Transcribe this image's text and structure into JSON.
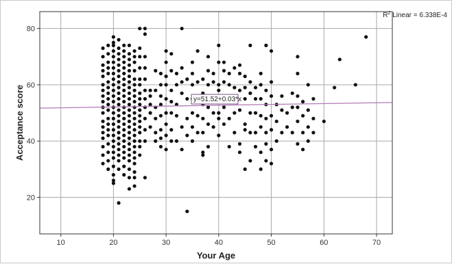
{
  "chart_data": {
    "type": "scatter",
    "title": "",
    "xlabel": "Your Age",
    "ylabel": "Acceptance score",
    "xlim": [
      6,
      73
    ],
    "ylim": [
      7,
      86
    ],
    "xticks": [
      10,
      20,
      30,
      40,
      50,
      60,
      70
    ],
    "yticks": [
      20,
      40,
      60,
      80
    ],
    "grid": true,
    "legend_position": "top-right",
    "r2_label": {
      "prefix": "R",
      "sup": "2",
      "text": " Linear = 6.338E-4"
    },
    "fit_equation": "y=51.52+0.03*x",
    "fit": {
      "intercept": 51.52,
      "slope": 0.03
    },
    "colors": {
      "points": "#111111",
      "fit_line": "#b07ab5",
      "grid": "#a8a8a8",
      "axis": "#333333"
    },
    "points": [
      [
        18,
        32
      ],
      [
        18,
        35
      ],
      [
        18,
        38
      ],
      [
        18,
        41
      ],
      [
        18,
        43
      ],
      [
        18,
        45
      ],
      [
        18,
        47
      ],
      [
        18,
        50
      ],
      [
        18,
        52
      ],
      [
        18,
        54
      ],
      [
        18,
        56
      ],
      [
        18,
        58
      ],
      [
        18,
        60
      ],
      [
        18,
        63
      ],
      [
        18,
        65
      ],
      [
        18,
        67
      ],
      [
        18,
        70
      ],
      [
        18,
        73
      ],
      [
        19,
        30
      ],
      [
        19,
        33
      ],
      [
        19,
        36
      ],
      [
        19,
        39
      ],
      [
        19,
        42
      ],
      [
        19,
        44
      ],
      [
        19,
        46
      ],
      [
        19,
        48
      ],
      [
        19,
        51
      ],
      [
        19,
        53
      ],
      [
        19,
        55
      ],
      [
        19,
        57
      ],
      [
        19,
        59
      ],
      [
        19,
        61
      ],
      [
        19,
        64
      ],
      [
        19,
        66
      ],
      [
        19,
        68
      ],
      [
        19,
        71
      ],
      [
        19,
        74
      ],
      [
        20,
        25
      ],
      [
        20,
        26
      ],
      [
        20,
        28
      ],
      [
        20,
        31
      ],
      [
        20,
        34
      ],
      [
        20,
        36
      ],
      [
        20,
        38
      ],
      [
        20,
        40
      ],
      [
        20,
        42
      ],
      [
        20,
        44
      ],
      [
        20,
        46
      ],
      [
        20,
        48
      ],
      [
        20,
        50
      ],
      [
        20,
        52
      ],
      [
        20,
        54
      ],
      [
        20,
        56
      ],
      [
        20,
        58
      ],
      [
        20,
        60
      ],
      [
        20,
        62
      ],
      [
        20,
        64
      ],
      [
        20,
        66
      ],
      [
        20,
        68
      ],
      [
        20,
        70
      ],
      [
        20,
        72
      ],
      [
        20,
        74
      ],
      [
        20,
        75
      ],
      [
        20,
        77
      ],
      [
        21,
        18
      ],
      [
        21,
        30
      ],
      [
        21,
        33
      ],
      [
        21,
        35
      ],
      [
        21,
        37
      ],
      [
        21,
        39
      ],
      [
        21,
        41
      ],
      [
        21,
        43
      ],
      [
        21,
        45
      ],
      [
        21,
        47
      ],
      [
        21,
        49
      ],
      [
        21,
        51
      ],
      [
        21,
        53
      ],
      [
        21,
        55
      ],
      [
        21,
        57
      ],
      [
        21,
        59
      ],
      [
        21,
        61
      ],
      [
        21,
        63
      ],
      [
        21,
        65
      ],
      [
        21,
        67
      ],
      [
        21,
        69
      ],
      [
        21,
        71
      ],
      [
        21,
        73
      ],
      [
        21,
        76
      ],
      [
        22,
        28
      ],
      [
        22,
        31
      ],
      [
        22,
        34
      ],
      [
        22,
        36
      ],
      [
        22,
        38
      ],
      [
        22,
        40
      ],
      [
        22,
        42
      ],
      [
        22,
        44
      ],
      [
        22,
        46
      ],
      [
        22,
        48
      ],
      [
        22,
        50
      ],
      [
        22,
        52
      ],
      [
        22,
        54
      ],
      [
        22,
        56
      ],
      [
        22,
        58
      ],
      [
        22,
        60
      ],
      [
        22,
        62
      ],
      [
        22,
        64
      ],
      [
        22,
        66
      ],
      [
        22,
        68
      ],
      [
        22,
        70
      ],
      [
        22,
        72
      ],
      [
        22,
        74
      ],
      [
        23,
        23
      ],
      [
        23,
        27
      ],
      [
        23,
        30
      ],
      [
        23,
        33
      ],
      [
        23,
        35
      ],
      [
        23,
        37
      ],
      [
        23,
        39
      ],
      [
        23,
        41
      ],
      [
        23,
        43
      ],
      [
        23,
        45
      ],
      [
        23,
        47
      ],
      [
        23,
        49
      ],
      [
        23,
        51
      ],
      [
        23,
        53
      ],
      [
        23,
        55
      ],
      [
        23,
        57
      ],
      [
        23,
        59
      ],
      [
        23,
        61
      ],
      [
        23,
        63
      ],
      [
        23,
        65
      ],
      [
        23,
        67
      ],
      [
        23,
        69
      ],
      [
        23,
        71
      ],
      [
        23,
        74
      ],
      [
        24,
        24
      ],
      [
        24,
        27
      ],
      [
        24,
        29
      ],
      [
        24,
        32
      ],
      [
        24,
        34
      ],
      [
        24,
        36
      ],
      [
        24,
        38
      ],
      [
        24,
        40
      ],
      [
        24,
        42
      ],
      [
        24,
        44
      ],
      [
        24,
        46
      ],
      [
        24,
        48
      ],
      [
        24,
        50
      ],
      [
        24,
        52
      ],
      [
        24,
        54
      ],
      [
        24,
        56
      ],
      [
        24,
        58
      ],
      [
        24,
        60
      ],
      [
        24,
        62
      ],
      [
        24,
        65
      ],
      [
        24,
        68
      ],
      [
        24,
        70
      ],
      [
        24,
        72
      ],
      [
        25,
        35
      ],
      [
        25,
        38
      ],
      [
        25,
        40
      ],
      [
        25,
        43
      ],
      [
        25,
        45
      ],
      [
        25,
        47
      ],
      [
        25,
        49
      ],
      [
        25,
        51
      ],
      [
        25,
        53
      ],
      [
        25,
        55
      ],
      [
        25,
        57
      ],
      [
        25,
        60
      ],
      [
        25,
        62
      ],
      [
        25,
        66
      ],
      [
        25,
        70
      ],
      [
        25,
        73
      ],
      [
        25,
        80
      ],
      [
        26,
        27
      ],
      [
        26,
        40
      ],
      [
        26,
        44
      ],
      [
        26,
        48
      ],
      [
        26,
        52
      ],
      [
        26,
        55
      ],
      [
        26,
        58
      ],
      [
        26,
        62
      ],
      [
        26,
        66
      ],
      [
        26,
        70
      ],
      [
        26,
        78
      ],
      [
        26,
        80
      ],
      [
        27,
        45
      ],
      [
        27,
        50
      ],
      [
        27,
        53
      ],
      [
        27,
        56
      ],
      [
        27,
        58
      ],
      [
        28,
        40
      ],
      [
        28,
        43
      ],
      [
        28,
        48
      ],
      [
        28,
        52
      ],
      [
        28,
        58
      ],
      [
        28,
        65
      ],
      [
        29,
        38
      ],
      [
        29,
        41
      ],
      [
        29,
        44
      ],
      [
        29,
        49
      ],
      [
        29,
        53
      ],
      [
        29,
        56
      ],
      [
        29,
        60
      ],
      [
        29,
        64
      ],
      [
        30,
        37
      ],
      [
        30,
        42
      ],
      [
        30,
        46
      ],
      [
        30,
        50
      ],
      [
        30,
        55
      ],
      [
        30,
        60
      ],
      [
        30,
        63
      ],
      [
        30,
        68
      ],
      [
        30,
        72
      ],
      [
        31,
        40
      ],
      [
        31,
        44
      ],
      [
        31,
        50
      ],
      [
        31,
        54
      ],
      [
        31,
        58
      ],
      [
        31,
        65
      ],
      [
        31,
        71
      ],
      [
        32,
        40
      ],
      [
        32,
        49
      ],
      [
        32,
        53
      ],
      [
        32,
        60
      ],
      [
        32,
        64
      ],
      [
        33,
        37
      ],
      [
        33,
        45
      ],
      [
        33,
        57
      ],
      [
        33,
        61
      ],
      [
        33,
        66
      ],
      [
        33,
        80
      ],
      [
        34,
        15
      ],
      [
        34,
        42
      ],
      [
        34,
        48
      ],
      [
        34,
        55
      ],
      [
        34,
        62
      ],
      [
        35,
        40
      ],
      [
        35,
        45
      ],
      [
        35,
        50
      ],
      [
        35,
        55
      ],
      [
        35,
        60
      ],
      [
        35,
        64
      ],
      [
        35,
        68
      ],
      [
        36,
        43
      ],
      [
        36,
        49
      ],
      [
        36,
        56
      ],
      [
        36,
        61
      ],
      [
        36,
        72
      ],
      [
        37,
        35
      ],
      [
        37,
        36
      ],
      [
        37,
        43
      ],
      [
        37,
        48
      ],
      [
        37,
        53
      ],
      [
        37,
        57
      ],
      [
        37,
        62
      ],
      [
        38,
        38
      ],
      [
        38,
        46
      ],
      [
        38,
        52
      ],
      [
        38,
        60
      ],
      [
        38,
        65
      ],
      [
        38,
        70
      ],
      [
        39,
        45
      ],
      [
        39,
        50
      ],
      [
        39,
        56
      ],
      [
        39,
        61
      ],
      [
        39,
        64
      ],
      [
        40,
        42
      ],
      [
        40,
        48
      ],
      [
        40,
        50
      ],
      [
        40,
        55
      ],
      [
        40,
        58
      ],
      [
        40,
        60
      ],
      [
        40,
        68
      ],
      [
        40,
        74
      ],
      [
        41,
        46
      ],
      [
        41,
        52
      ],
      [
        41,
        56
      ],
      [
        41,
        61
      ],
      [
        41,
        65
      ],
      [
        41,
        68
      ],
      [
        42,
        38
      ],
      [
        42,
        48
      ],
      [
        42,
        54
      ],
      [
        42,
        60
      ],
      [
        42,
        64
      ],
      [
        43,
        43
      ],
      [
        43,
        50
      ],
      [
        43,
        55
      ],
      [
        43,
        59
      ],
      [
        43,
        66
      ],
      [
        44,
        39
      ],
      [
        44,
        36
      ],
      [
        44,
        51
      ],
      [
        44,
        58
      ],
      [
        44,
        64
      ],
      [
        44,
        67
      ],
      [
        45,
        44
      ],
      [
        45,
        30
      ],
      [
        45,
        46
      ],
      [
        45,
        55
      ],
      [
        45,
        59
      ],
      [
        45,
        63
      ],
      [
        46,
        43
      ],
      [
        46,
        33
      ],
      [
        46,
        50
      ],
      [
        46,
        57
      ],
      [
        46,
        61
      ],
      [
        46,
        74
      ],
      [
        47,
        38
      ],
      [
        47,
        43
      ],
      [
        47,
        50
      ],
      [
        47,
        55
      ],
      [
        47,
        59
      ],
      [
        48,
        30
      ],
      [
        48,
        36
      ],
      [
        48,
        45
      ],
      [
        48,
        49
      ],
      [
        48,
        55
      ],
      [
        48,
        60
      ],
      [
        48,
        64
      ],
      [
        49,
        33
      ],
      [
        49,
        39
      ],
      [
        49,
        43
      ],
      [
        49,
        48
      ],
      [
        49,
        53
      ],
      [
        49,
        58
      ],
      [
        49,
        74
      ],
      [
        50,
        32
      ],
      [
        50,
        37
      ],
      [
        50,
        44
      ],
      [
        50,
        49
      ],
      [
        50,
        56
      ],
      [
        50,
        61
      ],
      [
        50,
        72
      ],
      [
        51,
        40
      ],
      [
        51,
        47
      ],
      [
        51,
        53
      ],
      [
        52,
        43
      ],
      [
        52,
        51
      ],
      [
        52,
        56
      ],
      [
        53,
        45
      ],
      [
        53,
        50
      ],
      [
        54,
        43
      ],
      [
        54,
        52
      ],
      [
        54,
        57
      ],
      [
        55,
        39
      ],
      [
        55,
        47
      ],
      [
        55,
        52
      ],
      [
        55,
        56
      ],
      [
        55,
        64
      ],
      [
        55,
        70
      ],
      [
        56,
        37
      ],
      [
        56,
        43
      ],
      [
        56,
        49
      ],
      [
        56,
        54
      ],
      [
        57,
        40
      ],
      [
        57,
        45
      ],
      [
        57,
        51
      ],
      [
        57,
        60
      ],
      [
        58,
        43
      ],
      [
        58,
        48
      ],
      [
        58,
        55
      ],
      [
        60,
        47
      ],
      [
        62,
        59
      ],
      [
        63,
        69
      ],
      [
        66,
        60
      ],
      [
        68,
        77
      ]
    ]
  }
}
